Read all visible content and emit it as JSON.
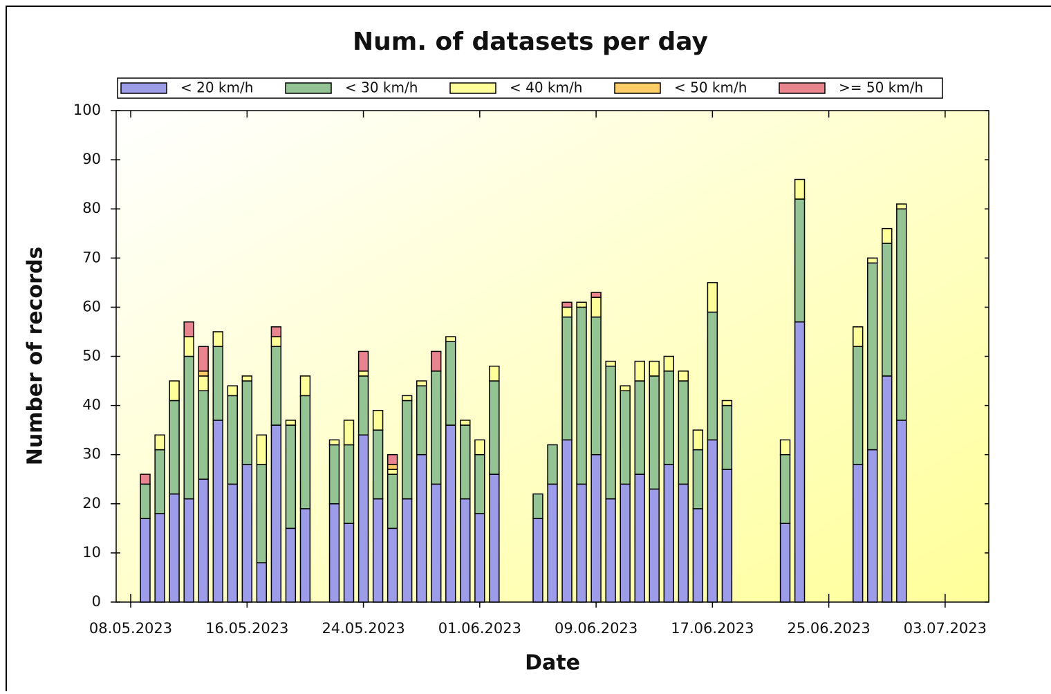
{
  "chart_data": {
    "type": "bar",
    "stacked": true,
    "title": "Num. of datasets per day",
    "x_label": "Date",
    "y_label": "Number of records",
    "x": [
      "09.05.2023",
      "10.05.2023",
      "11.05.2023",
      "12.05.2023",
      "13.05.2023",
      "14.05.2023",
      "15.05.2023",
      "16.05.2023",
      "17.05.2023",
      "18.05.2023",
      "19.05.2023",
      "20.05.2023",
      "22.05.2023",
      "23.05.2023",
      "24.05.2023",
      "25.05.2023",
      "26.05.2023",
      "27.05.2023",
      "28.05.2023",
      "29.05.2023",
      "30.05.2023",
      "31.05.2023",
      "01.06.2023",
      "02.06.2023",
      "05.06.2023",
      "06.06.2023",
      "07.06.2023",
      "08.06.2023",
      "09.06.2023",
      "10.06.2023",
      "11.06.2023",
      "12.06.2023",
      "13.06.2023",
      "14.06.2023",
      "15.06.2023",
      "16.06.2023",
      "17.06.2023",
      "18.06.2023",
      "22.06.2023",
      "23.06.2023",
      "27.06.2023",
      "28.06.2023",
      "29.06.2023",
      "30.06.2023"
    ],
    "series": [
      {
        "name": "< 20 km/h",
        "color": "#9c9ce8",
        "values": [
          17,
          18,
          22,
          21,
          25,
          37,
          24,
          28,
          8,
          36,
          15,
          19,
          20,
          16,
          34,
          21,
          15,
          21,
          30,
          24,
          36,
          21,
          18,
          26,
          17,
          24,
          33,
          24,
          30,
          21,
          24,
          26,
          23,
          28,
          24,
          19,
          33,
          27,
          16,
          57,
          28,
          31,
          46,
          37
        ]
      },
      {
        "name": "< 30 km/h",
        "color": "#94c494",
        "values": [
          7,
          13,
          19,
          29,
          18,
          15,
          18,
          17,
          20,
          16,
          21,
          23,
          12,
          16,
          12,
          14,
          11,
          20,
          14,
          23,
          17,
          15,
          12,
          19,
          5,
          8,
          25,
          36,
          28,
          27,
          19,
          19,
          23,
          19,
          21,
          12,
          26,
          13,
          14,
          25,
          24,
          38,
          27,
          43
        ]
      },
      {
        "name": "< 40 km/h",
        "color": "#ffff99",
        "values": [
          0,
          3,
          4,
          4,
          3,
          3,
          2,
          1,
          6,
          2,
          1,
          4,
          1,
          5,
          1,
          4,
          1,
          1,
          1,
          0,
          1,
          1,
          3,
          3,
          0,
          0,
          2,
          1,
          4,
          1,
          1,
          4,
          3,
          3,
          2,
          4,
          6,
          1,
          3,
          4,
          4,
          1,
          3,
          1
        ]
      },
      {
        "name": "< 50 km/h",
        "color": "#ffcc66",
        "values": [
          0,
          0,
          0,
          0,
          1,
          0,
          0,
          0,
          0,
          0,
          0,
          0,
          0,
          0,
          0,
          0,
          1,
          0,
          0,
          0,
          0,
          0,
          0,
          0,
          0,
          0,
          0,
          0,
          0,
          0,
          0,
          0,
          0,
          0,
          0,
          0,
          0,
          0,
          0,
          0,
          0,
          0,
          0,
          0
        ]
      },
      {
        "name": ">= 50 km/h",
        "color": "#e8848e",
        "values": [
          2,
          0,
          0,
          3,
          5,
          0,
          0,
          0,
          0,
          2,
          0,
          0,
          0,
          0,
          4,
          0,
          2,
          0,
          0,
          4,
          0,
          0,
          0,
          0,
          0,
          0,
          1,
          0,
          1,
          0,
          0,
          0,
          0,
          0,
          0,
          0,
          0,
          0,
          0,
          0,
          0,
          0,
          0,
          0
        ]
      }
    ],
    "xlim": [
      "07.05.2023",
      "06.07.2023"
    ],
    "xticks": [
      "08.05.2023",
      "16.05.2023",
      "24.05.2023",
      "01.06.2023",
      "09.06.2023",
      "17.06.2023",
      "25.06.2023",
      "03.07.2023"
    ],
    "ylim": [
      0,
      100
    ],
    "yticks": [
      0,
      10,
      20,
      30,
      40,
      50,
      60,
      70,
      80,
      90,
      100
    ],
    "legend": "top"
  }
}
